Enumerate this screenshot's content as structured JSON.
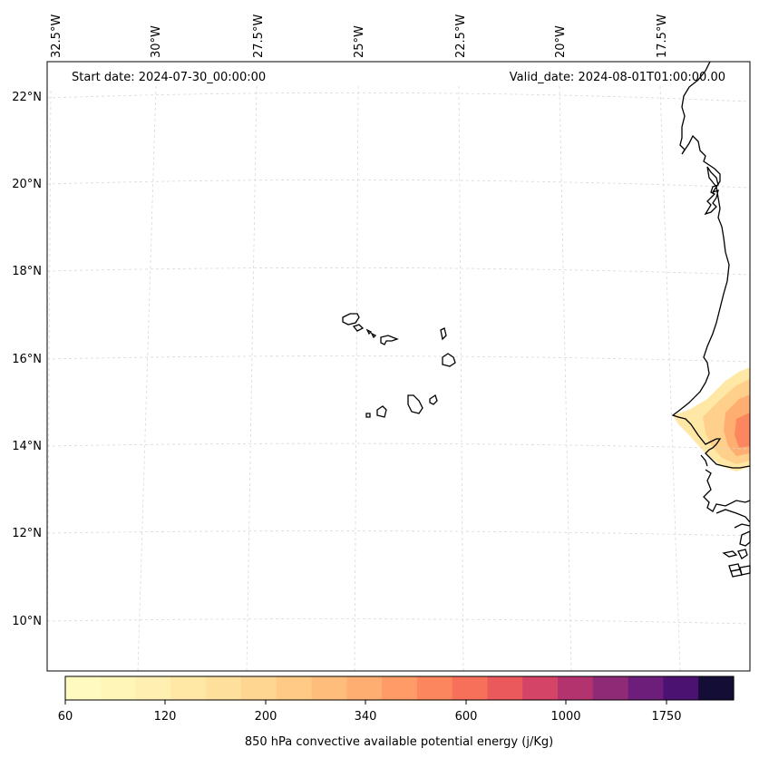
{
  "map": {
    "start_date_text": "Start date: 2024-07-30_00:00:00",
    "valid_date_text": "Valid_date: 2024-08-01T01:00:00.00",
    "lon_labels": [
      "32.5°W",
      "30°W",
      "27.5°W",
      "25°W",
      "22.5°W",
      "20°W",
      "17.5°W"
    ],
    "lat_labels": [
      "22°N",
      "20°N",
      "18°N",
      "16°N",
      "14°N",
      "12°N",
      "10°N"
    ],
    "gridlines": true,
    "coastline_color": "#000000"
  },
  "colorbar": {
    "label": "850 hPa convective available potential energy (j/Kg)",
    "tick_labels": [
      "60",
      "120",
      "200",
      "340",
      "600",
      "1000",
      "1750"
    ],
    "colors": [
      "#fffbc0",
      "#fff6b8",
      "#ffefb0",
      "#ffe8a6",
      "#ffdf9c",
      "#ffd592",
      "#ffca86",
      "#ffbd7c",
      "#ffae72",
      "#ff9b66",
      "#fc875e",
      "#f6705a",
      "#ea5a5c",
      "#d34466",
      "#b3336f",
      "#8e2a76",
      "#6d1d7a",
      "#4b1272",
      "#140e37"
    ]
  }
}
